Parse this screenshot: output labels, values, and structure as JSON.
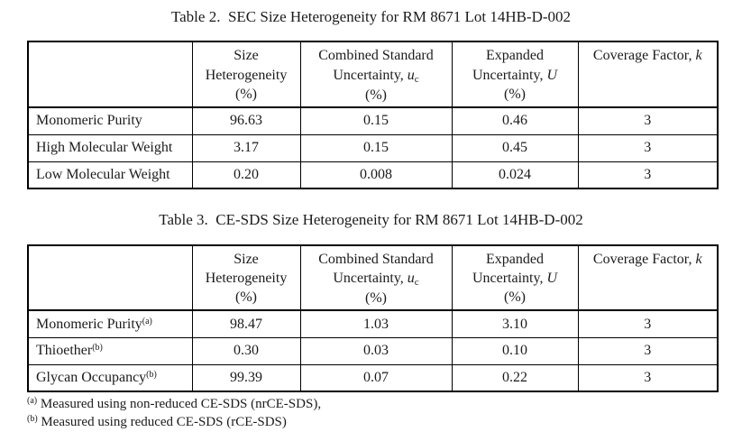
{
  "header": {
    "col_size": {
      "line1": "Size",
      "line2": "Heterogeneity",
      "line3": "(%)"
    },
    "col_combined": {
      "line1": "Combined Standard",
      "line2_prefix": "Uncertainty, ",
      "symbol": "u",
      "subscript": "c",
      "line3": "(%)"
    },
    "col_expanded": {
      "line1": "Expanded",
      "line2_prefix": "Uncertainty, ",
      "symbol": "U",
      "line3": "(%)"
    },
    "col_coverage": {
      "prefix": "Coverage Factor, ",
      "symbol": "k"
    }
  },
  "tables": [
    {
      "title": "Table 2.  SEC Size Heterogeneity for RM 8671 Lot 14HB-D-002",
      "rows": [
        {
          "label": "Monomeric Purity",
          "superscript": "",
          "values": [
            "96.63",
            "0.15",
            "0.46",
            "3"
          ]
        },
        {
          "label": "High Molecular Weight",
          "superscript": "",
          "values": [
            "3.17",
            "0.15",
            "0.45",
            "3"
          ]
        },
        {
          "label": "Low Molecular Weight",
          "superscript": "",
          "values": [
            "0.20",
            "0.008",
            "0.024",
            "3"
          ]
        }
      ]
    },
    {
      "title": "Table 3.  CE-SDS Size Heterogeneity for RM 8671 Lot 14HB-D-002",
      "rows": [
        {
          "label": "Monomeric Purity",
          "superscript": "(a)",
          "values": [
            "98.47",
            "1.03",
            "3.10",
            "3"
          ]
        },
        {
          "label": "Thioether",
          "superscript": "(b)",
          "values": [
            "0.30",
            "0.03",
            "0.10",
            "3"
          ]
        },
        {
          "label": "Glycan Occupancy",
          "superscript": "(b)",
          "values": [
            "99.39",
            "0.07",
            "0.22",
            "3"
          ]
        }
      ]
    }
  ],
  "footnotes": [
    {
      "marker": "(a)",
      "text": " Measured using non-reduced CE-SDS (nrCE-SDS),"
    },
    {
      "marker": "(b)",
      "text": " Measured using reduced CE-SDS (rCE-SDS)"
    }
  ],
  "colors": {
    "page_background": "#ffffff",
    "text": "#1b1b1b",
    "table_border": "#000000"
  }
}
